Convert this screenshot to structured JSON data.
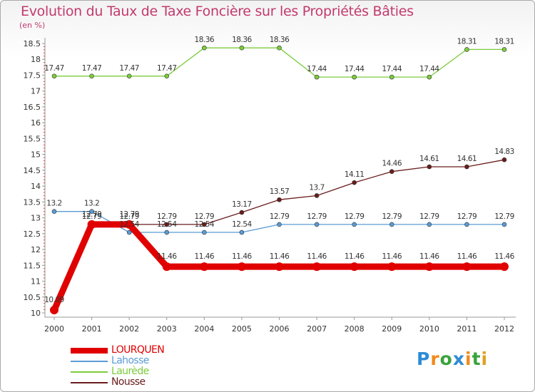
{
  "title": "Evolution du Taux de Taxe Foncière sur les Propriétés Bâties",
  "unit": "(en %)",
  "logo": "Proxiti",
  "chart_data": {
    "type": "line",
    "title": "Evolution du Taux de Taxe Foncière sur les Propriétés Bâties",
    "ylabel": "(en %)",
    "xlabel": "",
    "categories": [
      "2000",
      "2001",
      "2002",
      "2003",
      "2004",
      "2005",
      "2006",
      "2007",
      "2008",
      "2009",
      "2010",
      "2011",
      "2012"
    ],
    "yticks": [
      "10",
      "10.5",
      "11",
      "11.5",
      "12",
      "12.5",
      "13",
      "13.5",
      "14",
      "14.5",
      "15",
      "15.5",
      "16",
      "16.5",
      "17",
      "17.5",
      "18",
      "18.5"
    ],
    "ylim": [
      10,
      18.5
    ],
    "grid": false,
    "legend": "bottom-left",
    "series": [
      {
        "name": "Laurède",
        "color": "#7ccc3c",
        "values": [
          17.47,
          17.47,
          17.47,
          17.47,
          18.36,
          18.36,
          18.36,
          17.44,
          17.44,
          17.44,
          17.44,
          18.31,
          18.31
        ],
        "labels": [
          "17.47",
          "17.47",
          "17.47",
          "17.47",
          "18.36",
          "18.36",
          "18.36",
          "17.44",
          "17.44",
          "17.44",
          "17.44",
          "18.31",
          "18.31"
        ]
      },
      {
        "name": "Nousse",
        "color": "#6a1c1c",
        "values": [
          null,
          12.79,
          12.79,
          12.79,
          12.79,
          13.17,
          13.57,
          13.7,
          14.11,
          14.46,
          14.61,
          14.61,
          14.83
        ],
        "labels": [
          "",
          "12.79",
          "12.79",
          "12.79",
          "12.79",
          "13.17",
          "13.57",
          "13.7",
          "14.11",
          "14.46",
          "14.61",
          "14.61",
          "14.83"
        ]
      },
      {
        "name": "Lahosse",
        "color": "#5b9bd5",
        "values": [
          13.2,
          13.2,
          12.54,
          12.54,
          12.54,
          12.54,
          12.79,
          12.79,
          12.79,
          12.79,
          12.79,
          12.79,
          12.79
        ],
        "labels": [
          "13.2",
          "13.2",
          "12.54",
          "12.54",
          "12.54",
          "12.54",
          "12.79",
          "12.79",
          "12.79",
          "12.79",
          "12.79",
          "12.79",
          "12.79"
        ]
      },
      {
        "name": "LOURQUEN",
        "color": "#e00000",
        "values": [
          10.09,
          12.79,
          12.79,
          11.46,
          11.46,
          11.46,
          11.46,
          11.46,
          11.46,
          11.46,
          11.46,
          11.46,
          11.46
        ],
        "labels": [
          "10.09",
          "12.79",
          "12.79",
          "11.46",
          "11.46",
          "11.46",
          "11.46",
          "11.46",
          "11.46",
          "11.46",
          "11.46",
          "11.46",
          "11.46"
        ]
      }
    ],
    "legend_order": [
      "LOURQUEN",
      "Lahosse",
      "Laurède",
      "Nousse"
    ]
  },
  "logo_colors": [
    "#2e8bd6",
    "#f08a1c",
    "#3aa33a",
    "#2e8bd6",
    "#f08a1c",
    "#3aa33a",
    "#e0a020"
  ]
}
